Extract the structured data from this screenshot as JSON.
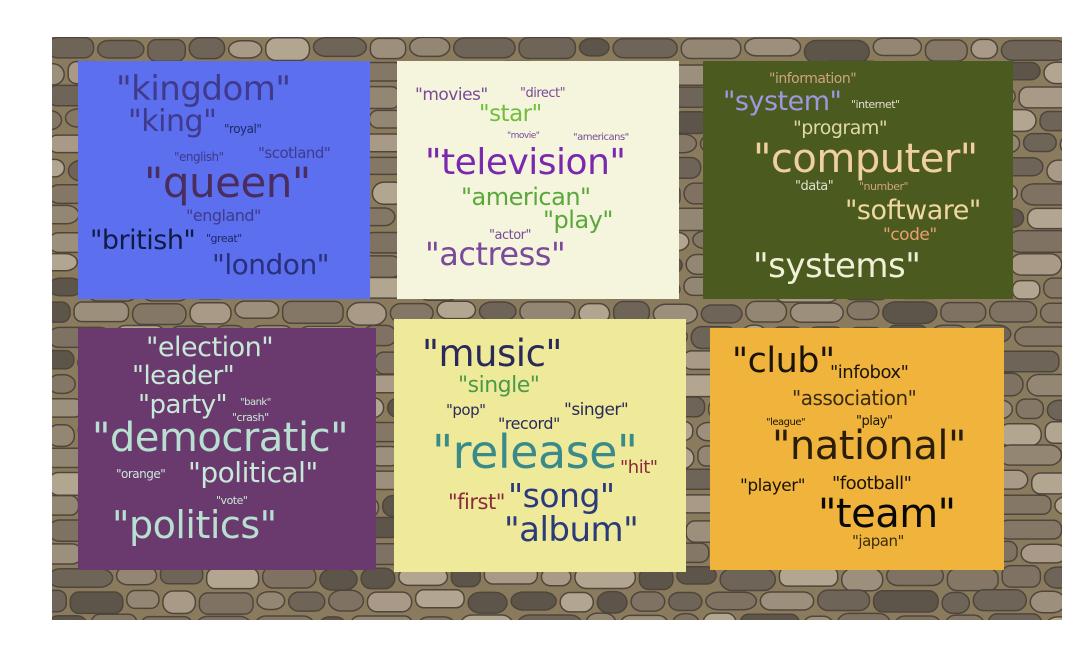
{
  "colors": {
    "wall_mortar": "#8b7b5e",
    "stone_light": "#a89a86",
    "stone_dark": "#5d544a"
  },
  "panels": [
    {
      "id": "royalty",
      "bg": "#5b6fef",
      "words": [
        {
          "text": "\"kingdom\"",
          "color": "#3f3a8c"
        },
        {
          "text": "\"king\"",
          "color": "#3f3a8c"
        },
        {
          "text": "\"royal\"",
          "color": "#1d2a66"
        },
        {
          "text": "\"english\"",
          "color": "#3f3a8c"
        },
        {
          "text": "\"scotland\"",
          "color": "#3f3a8c"
        },
        {
          "text": "\"queen\"",
          "color": "#4a2c5e"
        },
        {
          "text": "\"england\"",
          "color": "#3f3a8c"
        },
        {
          "text": "\"british\"",
          "color": "#111a44"
        },
        {
          "text": "\"great\"",
          "color": "#1d2a66"
        },
        {
          "text": "\"london\"",
          "color": "#2a2f7a"
        }
      ]
    },
    {
      "id": "entertainment",
      "bg": "#f4f5dc",
      "words": [
        {
          "text": "\"movies\"",
          "color": "#7a4a9a"
        },
        {
          "text": "\"direct\"",
          "color": "#7a4a9a"
        },
        {
          "text": "\"star\"",
          "color": "#6fbf3a"
        },
        {
          "text": "\"movie\"",
          "color": "#7a4a9a"
        },
        {
          "text": "\"americans\"",
          "color": "#7a4a9a"
        },
        {
          "text": "\"television\"",
          "color": "#7a28b0"
        },
        {
          "text": "\"american\"",
          "color": "#5aa83a"
        },
        {
          "text": "\"play\"",
          "color": "#5aa83a"
        },
        {
          "text": "\"actor\"",
          "color": "#7a4a9a"
        },
        {
          "text": "\"actress\"",
          "color": "#7a4a9a"
        }
      ]
    },
    {
      "id": "computing",
      "bg": "#4b5a1e",
      "words": [
        {
          "text": "\"information\"",
          "color": "#d0a383"
        },
        {
          "text": "\"system\"",
          "color": "#9b99e0"
        },
        {
          "text": "\"internet\"",
          "color": "#e0e0d0"
        },
        {
          "text": "\"program\"",
          "color": "#e0d8a8"
        },
        {
          "text": "\"computer\"",
          "color": "#f0d0a0"
        },
        {
          "text": "\"data\"",
          "color": "#e0e0d0"
        },
        {
          "text": "\"number\"",
          "color": "#d0a383"
        },
        {
          "text": "\"software\"",
          "color": "#f0d8a0"
        },
        {
          "text": "\"code\"",
          "color": "#e8a070"
        },
        {
          "text": "\"systems\"",
          "color": "#f0f0d8"
        }
      ]
    },
    {
      "id": "politics",
      "bg": "#6a3a6e",
      "words": [
        {
          "text": "\"election\"",
          "color": "#c8e8d8"
        },
        {
          "text": "\"leader\"",
          "color": "#c8e8d8"
        },
        {
          "text": "\"party\"",
          "color": "#c8e8d8"
        },
        {
          "text": "\"bank\"",
          "color": "#c8e8d8"
        },
        {
          "text": "\"crash\"",
          "color": "#c8e8d8"
        },
        {
          "text": "\"democratic\"",
          "color": "#b8e0d0"
        },
        {
          "text": "\"orange\"",
          "color": "#c8e8d8"
        },
        {
          "text": "\"political\"",
          "color": "#c8e8d8"
        },
        {
          "text": "\"vote\"",
          "color": "#c8e8d8"
        },
        {
          "text": "\"politics\"",
          "color": "#b8e0d0"
        }
      ]
    },
    {
      "id": "music",
      "bg": "#eeea9a",
      "words": [
        {
          "text": "\"music\"",
          "color": "#2a2a5a"
        },
        {
          "text": "\"single\"",
          "color": "#4a9a4a"
        },
        {
          "text": "\"pop\"",
          "color": "#2a2a5a"
        },
        {
          "text": "\"singer\"",
          "color": "#2a2a5a"
        },
        {
          "text": "\"record\"",
          "color": "#2a2a5a"
        },
        {
          "text": "\"release\"",
          "color": "#3a8a8a"
        },
        {
          "text": "\"hit\"",
          "color": "#8a2a3a"
        },
        {
          "text": "\"first\"",
          "color": "#8a2a3a"
        },
        {
          "text": "\"song\"",
          "color": "#2a3a7a"
        },
        {
          "text": "\"album\"",
          "color": "#2a3a7a"
        }
      ]
    },
    {
      "id": "sports",
      "bg": "#f0b43c",
      "words": [
        {
          "text": "\"club\"",
          "color": "#1a1408"
        },
        {
          "text": "\"infobox\"",
          "color": "#1a1408"
        },
        {
          "text": "\"association\"",
          "color": "#3a2c10"
        },
        {
          "text": "\"league\"",
          "color": "#1a1408"
        },
        {
          "text": "\"play\"",
          "color": "#1a1408"
        },
        {
          "text": "\"national\"",
          "color": "#2a1e08"
        },
        {
          "text": "\"player\"",
          "color": "#1a1408"
        },
        {
          "text": "\"football\"",
          "color": "#1a1408"
        },
        {
          "text": "\"team\"",
          "color": "#0a0804"
        },
        {
          "text": "\"japan\"",
          "color": "#3a2c10"
        }
      ]
    }
  ]
}
